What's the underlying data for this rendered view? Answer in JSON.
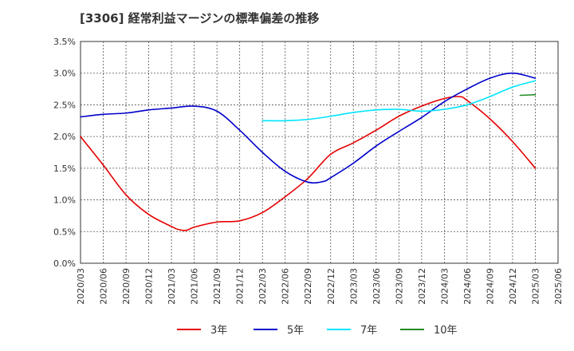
{
  "title": "[3306]  経常利益マージンの標準偏差の推移",
  "chart_data": {
    "type": "line",
    "title": "[3306]  経常利益マージンの標準偏差の推移",
    "xlabel": "",
    "ylabel": "",
    "ylim": [
      0,
      3.5
    ],
    "grid": true,
    "legend_position": "bottom",
    "x_ticks": [
      "2020/03",
      "2020/06",
      "2020/09",
      "2020/12",
      "2021/03",
      "2021/06",
      "2021/09",
      "2021/12",
      "2022/03",
      "2022/06",
      "2022/09",
      "2022/12",
      "2023/03",
      "2023/06",
      "2023/09",
      "2023/12",
      "2024/03",
      "2024/06",
      "2024/09",
      "2024/12",
      "2025/03",
      "2025/06"
    ],
    "y_ticks": [
      "0.0%",
      "0.5%",
      "1.0%",
      "1.5%",
      "2.0%",
      "2.5%",
      "3.0%",
      "3.5%"
    ],
    "series": [
      {
        "name": "3年",
        "color": "#e60000",
        "points": [
          [
            "2020/03",
            2.0
          ],
          [
            "2020/06",
            1.55
          ],
          [
            "2020/09",
            1.08
          ],
          [
            "2020/12",
            0.77
          ],
          [
            "2021/03",
            0.58
          ],
          [
            "2021/04",
            0.53
          ],
          [
            "2021/05",
            0.52
          ],
          [
            "2021/06",
            0.57
          ],
          [
            "2021/09",
            0.65
          ],
          [
            "2021/12",
            0.67
          ],
          [
            "2022/03",
            0.8
          ],
          [
            "2022/06",
            1.05
          ],
          [
            "2022/09",
            1.34
          ],
          [
            "2022/12",
            1.72
          ],
          [
            "2023/03",
            1.9
          ],
          [
            "2023/06",
            2.1
          ],
          [
            "2023/09",
            2.32
          ],
          [
            "2023/12",
            2.48
          ],
          [
            "2024/03",
            2.6
          ],
          [
            "2024/05",
            2.63
          ],
          [
            "2024/06",
            2.57
          ],
          [
            "2024/09",
            2.28
          ],
          [
            "2024/12",
            1.92
          ],
          [
            "2025/03",
            1.5
          ]
        ]
      },
      {
        "name": "5年",
        "color": "#0000cc",
        "points": [
          [
            "2020/03",
            2.31
          ],
          [
            "2020/06",
            2.35
          ],
          [
            "2020/09",
            2.37
          ],
          [
            "2020/12",
            2.42
          ],
          [
            "2021/03",
            2.45
          ],
          [
            "2021/06",
            2.48
          ],
          [
            "2021/09",
            2.4
          ],
          [
            "2021/12",
            2.1
          ],
          [
            "2022/03",
            1.75
          ],
          [
            "2022/06",
            1.45
          ],
          [
            "2022/09",
            1.28
          ],
          [
            "2022/11",
            1.29
          ],
          [
            "2022/12",
            1.35
          ],
          [
            "2023/03",
            1.58
          ],
          [
            "2023/06",
            1.85
          ],
          [
            "2023/09",
            2.08
          ],
          [
            "2023/12",
            2.3
          ],
          [
            "2024/03",
            2.55
          ],
          [
            "2024/06",
            2.75
          ],
          [
            "2024/09",
            2.92
          ],
          [
            "2024/12",
            3.0
          ],
          [
            "2025/03",
            2.92
          ]
        ]
      },
      {
        "name": "7年",
        "color": "#00e5ff",
        "points": [
          [
            "2022/03",
            2.25
          ],
          [
            "2022/06",
            2.25
          ],
          [
            "2022/09",
            2.27
          ],
          [
            "2022/12",
            2.32
          ],
          [
            "2023/03",
            2.38
          ],
          [
            "2023/06",
            2.42
          ],
          [
            "2023/09",
            2.43
          ],
          [
            "2023/12",
            2.4
          ],
          [
            "2024/03",
            2.43
          ],
          [
            "2024/06",
            2.5
          ],
          [
            "2024/09",
            2.63
          ],
          [
            "2024/12",
            2.78
          ],
          [
            "2025/03",
            2.88
          ]
        ]
      },
      {
        "name": "10年",
        "color": "#228b22",
        "points": [
          [
            "2025/01",
            2.65
          ],
          [
            "2025/03",
            2.66
          ]
        ]
      }
    ]
  }
}
